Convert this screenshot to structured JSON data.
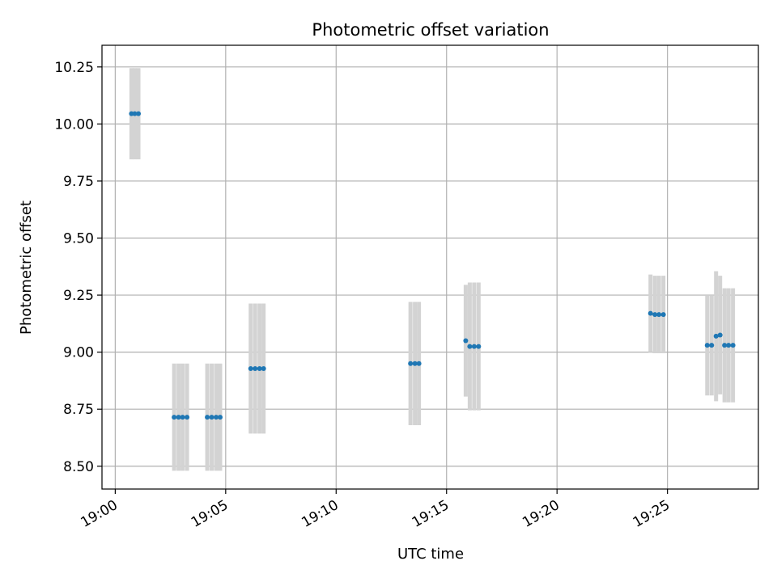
{
  "chart_data": {
    "type": "scatter",
    "title": "Photometric offset variation",
    "xlabel": "UTC time",
    "ylabel": "Photometric offset",
    "x_unit": "UTC time (HH:MM:SS)",
    "xlim": [
      "18:59:24",
      "19:29:07"
    ],
    "ylim": [
      8.4,
      10.345
    ],
    "x_ticks": [
      "19:00",
      "19:05",
      "19:10",
      "19:15",
      "19:20",
      "19:25"
    ],
    "y_ticks": [
      "8.50",
      "8.75",
      "9.00",
      "9.25",
      "9.50",
      "9.75",
      "10.00",
      "10.25"
    ],
    "grid": true,
    "point_color": "#1f77b4",
    "errorbar_color": "#d3d3d3",
    "series": [
      {
        "points": [
          {
            "t": "19:00:44",
            "y": 10.045,
            "err": 0.2
          },
          {
            "t": "19:00:53",
            "y": 10.045,
            "err": 0.2
          },
          {
            "t": "19:01:03",
            "y": 10.045,
            "err": 0.2
          },
          {
            "t": "19:02:40",
            "y": 8.715,
            "err": 0.235
          },
          {
            "t": "19:02:52",
            "y": 8.715,
            "err": 0.235
          },
          {
            "t": "19:03:03",
            "y": 8.715,
            "err": 0.235
          },
          {
            "t": "19:03:15",
            "y": 8.715,
            "err": 0.235
          },
          {
            "t": "19:04:10",
            "y": 8.715,
            "err": 0.235
          },
          {
            "t": "19:04:22",
            "y": 8.715,
            "err": 0.235
          },
          {
            "t": "19:04:34",
            "y": 8.715,
            "err": 0.235
          },
          {
            "t": "19:04:45",
            "y": 8.715,
            "err": 0.235
          },
          {
            "t": "19:06:08",
            "y": 8.928,
            "err": 0.285
          },
          {
            "t": "19:06:20",
            "y": 8.928,
            "err": 0.285
          },
          {
            "t": "19:06:32",
            "y": 8.928,
            "err": 0.285
          },
          {
            "t": "19:06:43",
            "y": 8.928,
            "err": 0.285
          },
          {
            "t": "19:13:22",
            "y": 8.95,
            "err": 0.27
          },
          {
            "t": "19:13:34",
            "y": 8.95,
            "err": 0.27
          },
          {
            "t": "19:13:45",
            "y": 8.95,
            "err": 0.27
          },
          {
            "t": "19:15:52",
            "y": 9.05,
            "err": 0.245
          },
          {
            "t": "19:16:03",
            "y": 9.025,
            "err": 0.28
          },
          {
            "t": "19:16:15",
            "y": 9.025,
            "err": 0.28
          },
          {
            "t": "19:16:27",
            "y": 9.025,
            "err": 0.28
          },
          {
            "t": "19:24:14",
            "y": 9.17,
            "err": 0.17
          },
          {
            "t": "19:24:26",
            "y": 9.165,
            "err": 0.17
          },
          {
            "t": "19:24:37",
            "y": 9.165,
            "err": 0.17
          },
          {
            "t": "19:24:49",
            "y": 9.165,
            "err": 0.17
          },
          {
            "t": "19:26:48",
            "y": 9.03,
            "err": 0.22
          },
          {
            "t": "19:27:00",
            "y": 9.03,
            "err": 0.22
          },
          {
            "t": "19:27:12",
            "y": 9.07,
            "err": 0.285
          },
          {
            "t": "19:27:23",
            "y": 9.075,
            "err": 0.26
          },
          {
            "t": "19:27:35",
            "y": 9.03,
            "err": 0.25
          },
          {
            "t": "19:27:46",
            "y": 9.03,
            "err": 0.25
          },
          {
            "t": "19:27:58",
            "y": 9.03,
            "err": 0.25
          }
        ]
      }
    ]
  }
}
